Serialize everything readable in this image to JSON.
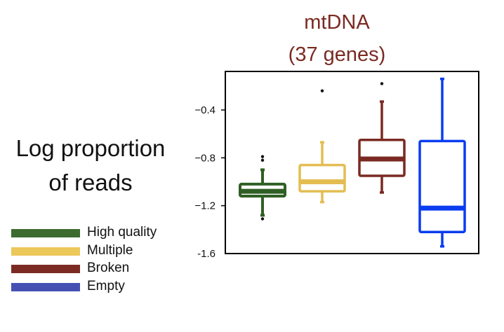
{
  "chart_data": {
    "type": "box",
    "title": [
      "mtDNA",
      "(37 genes)"
    ],
    "ylabel": [
      "Log proportion",
      "of reads"
    ],
    "ylim": [
      -1.6,
      -0.1
    ],
    "yticks": [
      -0.4,
      -0.8,
      -1.2,
      -1.6
    ],
    "ytick_labels": [
      "−0.4",
      "−0.8",
      "−1.2",
      "-1.6"
    ],
    "grid": false,
    "legend_position": "bottom-left",
    "series": [
      {
        "name": "High quality",
        "color": "#2f5f24",
        "min": -1.28,
        "q1": -1.12,
        "median": -1.08,
        "q3": -1.02,
        "max": -0.9,
        "outliers": [
          -0.79,
          -0.82,
          -1.31
        ]
      },
      {
        "name": "Multiple",
        "color": "#e4bd52",
        "min": -1.17,
        "q1": -1.08,
        "median": -1.0,
        "q3": -0.86,
        "max": -0.67,
        "outliers": [
          -0.24
        ]
      },
      {
        "name": "Broken",
        "color": "#7a2a22",
        "min": -1.09,
        "q1": -0.95,
        "median": -0.81,
        "q3": -0.65,
        "max": -0.33,
        "outliers": [
          -0.18
        ]
      },
      {
        "name": "Empty",
        "color": "#0a3cf0",
        "min": -1.54,
        "q1": -1.42,
        "median": -1.22,
        "q3": -0.66,
        "max": -0.14,
        "outliers": []
      }
    ]
  },
  "legend": {
    "items": [
      {
        "label": "High quality",
        "color": "#3d6b2f"
      },
      {
        "label": "Multiple",
        "color": "#ecc85a"
      },
      {
        "label": "Broken",
        "color": "#7b2b24"
      },
      {
        "label": "Empty",
        "color": "#4451b3"
      }
    ]
  }
}
